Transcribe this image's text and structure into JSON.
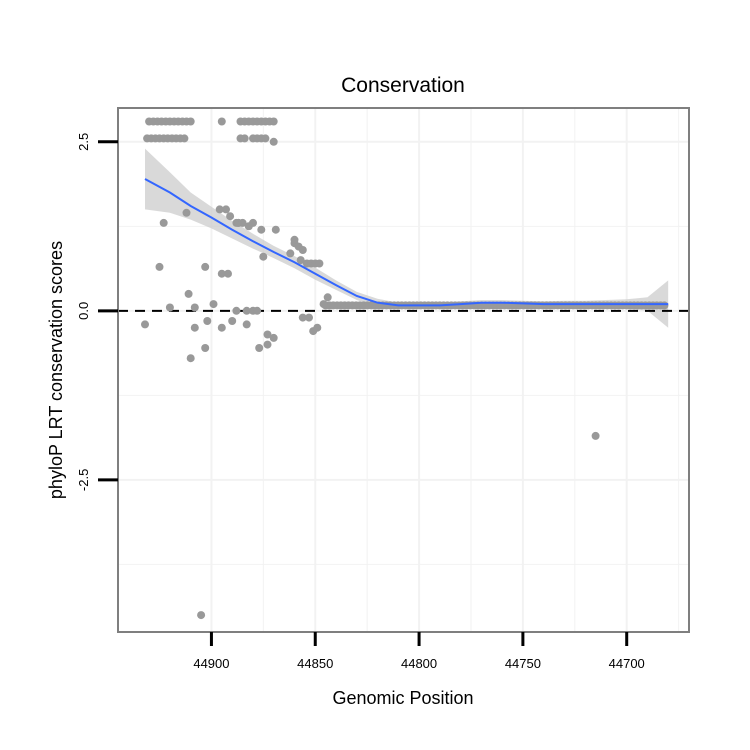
{
  "chart_data": {
    "type": "scatter",
    "title": "Conservation",
    "xlabel": "Genomic Position",
    "ylabel": "phyloP LRT conservation scores",
    "xlim": [
      44945,
      44670
    ],
    "ylim": [
      -4.75,
      3.0
    ],
    "x_ticks": [
      44900,
      44850,
      44800,
      44750,
      44700
    ],
    "x_tick_labels": [
      "44900",
      "44850",
      "44800",
      "44750",
      "44700"
    ],
    "y_ticks": [
      2.5,
      0.0,
      -2.5
    ],
    "y_tick_labels": [
      "2.5",
      "0.0",
      "-2.5"
    ],
    "x_reversed": true,
    "grid": true,
    "reference_line": {
      "y": 0,
      "style": "dashed"
    },
    "series": [
      {
        "name": "scores",
        "kind": "points",
        "color": "#999999",
        "points": [
          [
            44930,
            2.8
          ],
          [
            44928,
            2.8
          ],
          [
            44926,
            2.8
          ],
          [
            44924,
            2.8
          ],
          [
            44922,
            2.8
          ],
          [
            44920,
            2.8
          ],
          [
            44918,
            2.8
          ],
          [
            44916,
            2.8
          ],
          [
            44914,
            2.8
          ],
          [
            44912,
            2.8
          ],
          [
            44910,
            2.8
          ],
          [
            44895,
            2.8
          ],
          [
            44886,
            2.8
          ],
          [
            44884,
            2.8
          ],
          [
            44882,
            2.8
          ],
          [
            44880,
            2.8
          ],
          [
            44878,
            2.8
          ],
          [
            44876,
            2.8
          ],
          [
            44874,
            2.8
          ],
          [
            44872,
            2.8
          ],
          [
            44870,
            2.8
          ],
          [
            44931,
            2.55
          ],
          [
            44929,
            2.55
          ],
          [
            44927,
            2.55
          ],
          [
            44925,
            2.55
          ],
          [
            44923,
            2.55
          ],
          [
            44921,
            2.55
          ],
          [
            44919,
            2.55
          ],
          [
            44917,
            2.55
          ],
          [
            44915,
            2.55
          ],
          [
            44913,
            2.55
          ],
          [
            44886,
            2.55
          ],
          [
            44884,
            2.55
          ],
          [
            44880,
            2.55
          ],
          [
            44878,
            2.55
          ],
          [
            44876,
            2.55
          ],
          [
            44874,
            2.55
          ],
          [
            44870,
            2.5
          ],
          [
            44923,
            1.3
          ],
          [
            44912,
            1.45
          ],
          [
            44896,
            1.5
          ],
          [
            44891,
            1.4
          ],
          [
            44888,
            1.3
          ],
          [
            44887,
            1.3
          ],
          [
            44887,
            1.3
          ],
          [
            44885,
            1.3
          ],
          [
            44882,
            1.25
          ],
          [
            44880,
            1.3
          ],
          [
            44876,
            1.2
          ],
          [
            44869,
            1.2
          ],
          [
            44862,
            0.85
          ],
          [
            44860,
            1.0
          ],
          [
            44858,
            0.95
          ],
          [
            44856,
            0.9
          ],
          [
            44854,
            0.7
          ],
          [
            44852,
            0.7
          ],
          [
            44850,
            0.7
          ],
          [
            44848,
            0.7
          ],
          [
            44875,
            0.8
          ],
          [
            44925,
            0.65
          ],
          [
            44903,
            0.65
          ],
          [
            44892,
            0.55
          ],
          [
            44888,
            0.0
          ],
          [
            44920,
            0.05
          ],
          [
            44899,
            0.1
          ],
          [
            44883,
            0.0
          ],
          [
            44880,
            0.0
          ],
          [
            44878,
            0.0
          ],
          [
            44932,
            -0.2
          ],
          [
            44908,
            -0.25
          ],
          [
            44902,
            -0.15
          ],
          [
            44895,
            -0.25
          ],
          [
            44890,
            -0.15
          ],
          [
            44883,
            -0.2
          ],
          [
            44877,
            -0.55
          ],
          [
            44873,
            -0.5
          ],
          [
            44870,
            -0.4
          ],
          [
            44895,
            0.55
          ],
          [
            44893,
            1.5
          ],
          [
            44860,
            1.05
          ],
          [
            44857,
            0.75
          ],
          [
            44853,
            -0.1
          ],
          [
            44851,
            -0.3
          ],
          [
            44849,
            -0.25
          ],
          [
            44846,
            0.1
          ],
          [
            44844,
            0.2
          ],
          [
            44910,
            -0.7
          ],
          [
            44903,
            -0.55
          ],
          [
            44873,
            -0.35
          ],
          [
            44856,
            -0.1
          ],
          [
            44911,
            0.25
          ],
          [
            44908,
            0.05
          ],
          [
            44715,
            -1.85
          ],
          [
            44905,
            -4.5
          ]
        ],
        "band_start": 44845,
        "band_end": 44680,
        "band_value": 0.08
      },
      {
        "name": "smooth",
        "kind": "line",
        "color": "#3366FF",
        "ribbon_color": "#CCCCCC",
        "x": [
          44932,
          44920,
          44910,
          44900,
          44890,
          44880,
          44870,
          44860,
          44850,
          44840,
          44830,
          44820,
          44810,
          44800,
          44790,
          44780,
          44770,
          44760,
          44750,
          44740,
          44730,
          44720,
          44710,
          44700,
          44690,
          44680
        ],
        "y": [
          1.95,
          1.75,
          1.55,
          1.38,
          1.2,
          1.03,
          0.87,
          0.72,
          0.55,
          0.38,
          0.22,
          0.12,
          0.08,
          0.08,
          0.08,
          0.1,
          0.12,
          0.12,
          0.11,
          0.1,
          0.1,
          0.1,
          0.1,
          0.1,
          0.1,
          0.1
        ],
        "lo": [
          1.5,
          1.45,
          1.35,
          1.22,
          1.07,
          0.92,
          0.78,
          0.63,
          0.46,
          0.31,
          0.16,
          0.06,
          0.04,
          0.04,
          0.05,
          0.06,
          0.08,
          0.08,
          0.07,
          0.06,
          0.05,
          0.05,
          0.04,
          0.03,
          0.0,
          -0.25
        ],
        "hi": [
          2.4,
          2.05,
          1.75,
          1.54,
          1.33,
          1.14,
          0.96,
          0.81,
          0.64,
          0.45,
          0.28,
          0.18,
          0.12,
          0.12,
          0.11,
          0.14,
          0.16,
          0.16,
          0.15,
          0.14,
          0.15,
          0.15,
          0.16,
          0.17,
          0.2,
          0.45
        ]
      }
    ]
  }
}
